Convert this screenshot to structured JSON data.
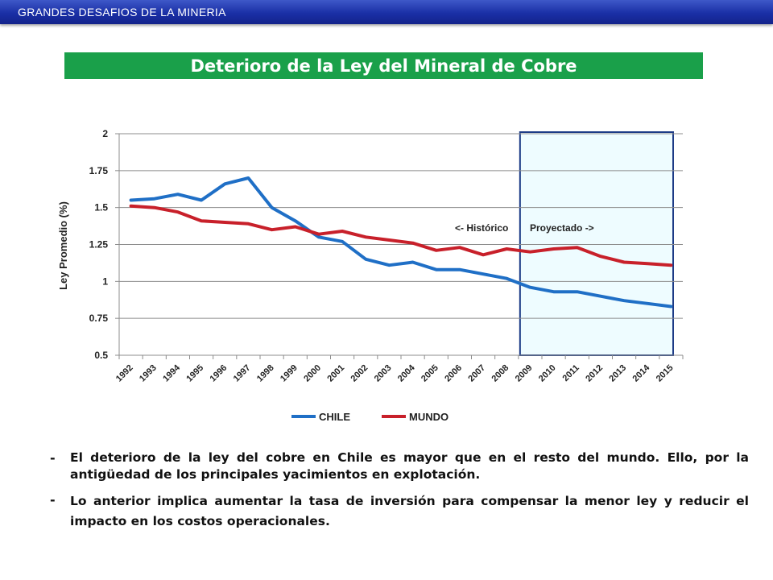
{
  "header": {
    "label": "GRANDES DESAFIOS DE LA MINERIA"
  },
  "title": "Deterioro de la Ley del Mineral de Cobre",
  "chart_data": {
    "type": "line",
    "categories": [
      "1992",
      "1993",
      "1994",
      "1995",
      "1996",
      "1997",
      "1998",
      "1999",
      "2000",
      "2001",
      "2002",
      "2003",
      "2004",
      "2005",
      "2006",
      "2007",
      "2008",
      "2009",
      "2010",
      "2011",
      "2012",
      "2013",
      "2014",
      "2015"
    ],
    "series": [
      {
        "name": "CHILE",
        "color": "#1f6fc6",
        "values": [
          1.55,
          1.56,
          1.59,
          1.55,
          1.66,
          1.7,
          1.5,
          1.41,
          1.3,
          1.27,
          1.15,
          1.11,
          1.13,
          1.08,
          1.08,
          1.05,
          1.02,
          0.96,
          0.93,
          0.93,
          0.9,
          0.87,
          0.85,
          0.83
        ]
      },
      {
        "name": "MUNDO",
        "color": "#c8202a",
        "values": [
          1.51,
          1.5,
          1.47,
          1.41,
          1.4,
          1.39,
          1.35,
          1.37,
          1.32,
          1.34,
          1.3,
          1.28,
          1.26,
          1.21,
          1.23,
          1.18,
          1.22,
          1.2,
          1.22,
          1.23,
          1.17,
          1.13,
          1.12,
          1.11
        ]
      }
    ],
    "ylabel": "Ley Promedio (%)",
    "xlabel": "",
    "ylim": [
      0.5,
      2
    ],
    "yticks": [
      "0.5",
      "0.75",
      "1",
      "1.25",
      "1.5",
      "1.75",
      "2"
    ],
    "grid": true,
    "legend_position": "bottom",
    "annotations": {
      "historico": "<- Histórico",
      "proyectado": "Proyectado ->"
    },
    "projected_from": "2009",
    "projected_to": "2015",
    "projected_fill": "#eefcff",
    "projected_border": "#1c3b86"
  },
  "bullets": [
    "El deterioro de la ley del cobre en Chile es mayor que en el resto del mundo. Ello, por la antigüedad de los principales yacimientos en explotación.",
    "Lo anterior implica aumentar la tasa de inversión para compensar la menor ley y reducir el impacto en los costos operacionales."
  ],
  "bullet_marker": "-"
}
